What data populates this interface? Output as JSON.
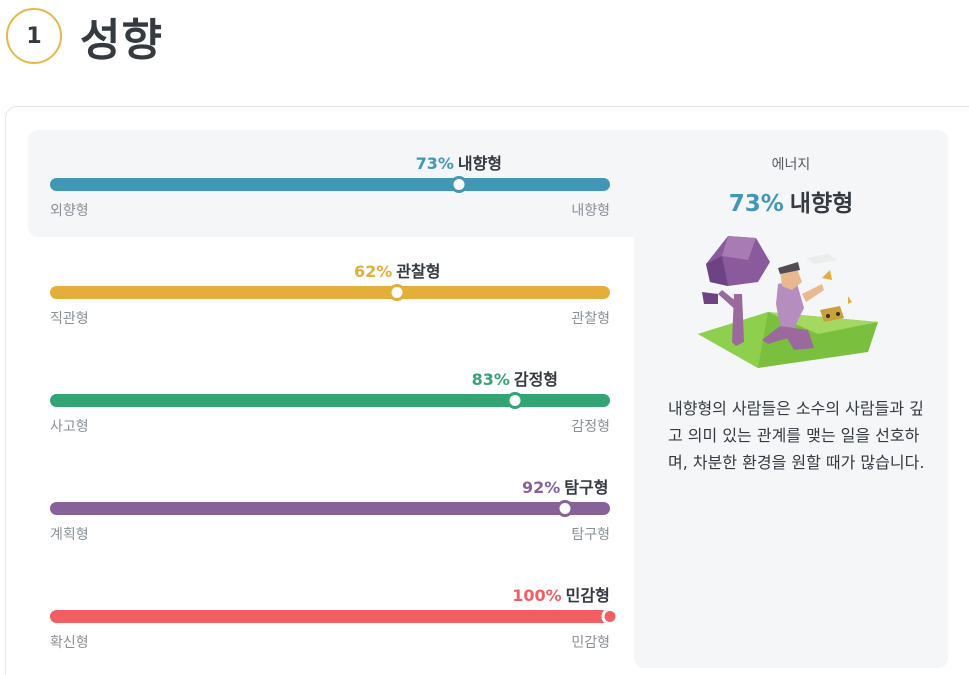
{
  "header": {
    "step": "1",
    "title": "성향"
  },
  "traits": [
    {
      "percent_text": "73%",
      "name": "내향형",
      "left": "외향형",
      "right": "내향형",
      "value": 73,
      "color": "#4298b4"
    },
    {
      "percent_text": "62%",
      "name": "관찰형",
      "left": "직관형",
      "right": "관찰형",
      "value": 62,
      "color": "#e4ae3a"
    },
    {
      "percent_text": "83%",
      "name": "감정형",
      "left": "사고형",
      "right": "감정형",
      "value": 83,
      "color": "#33a474"
    },
    {
      "percent_text": "92%",
      "name": "탐구형",
      "left": "계획형",
      "right": "탐구형",
      "value": 92,
      "color": "#88619a"
    },
    {
      "percent_text": "100%",
      "name": "민감형",
      "left": "확신형",
      "right": "민감형",
      "value": 100,
      "color": "#f25e62"
    }
  ],
  "side_panel": {
    "caption": "에너지",
    "percent_text": "73%",
    "name": "내향형",
    "description": "내향형의 사람들은 소수의 사람들과 깊고 의미 있는 관계를 맺는 일을 선호하며, 차분한 환경을 원할 때가 많습니다.",
    "accent_color": "#4298b4"
  }
}
